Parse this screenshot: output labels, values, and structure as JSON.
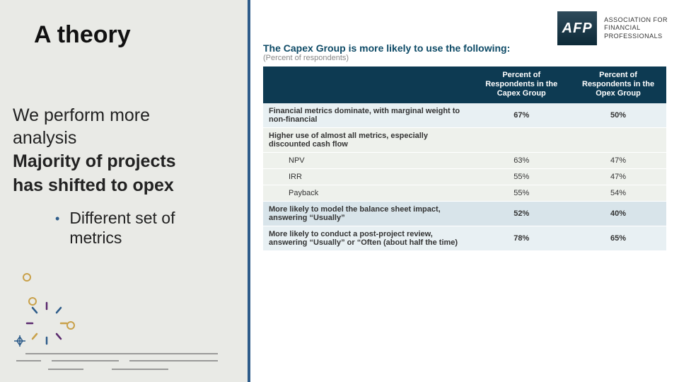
{
  "slide": {
    "title": "A theory",
    "body": {
      "line1": "We perform more",
      "line2": "analysis",
      "line3": "Majority of projects",
      "line4": "has shifted to opex",
      "bullet1a": "Different set of",
      "bullet1b": "metrics"
    }
  },
  "brand": {
    "logo_text": "AFP",
    "sub_line1": "Association for",
    "sub_line2": "Financial",
    "sub_line3": "Professionals"
  },
  "table": {
    "title": "The Capex Group is more likely to use the following:",
    "subtitle": "(Percent of respondents)",
    "columns": {
      "c0": "",
      "c1": "Percent of Respondents in the Capex Group",
      "c2": "Percent of Respondents in the Opex Group"
    },
    "rows": [
      {
        "band": "a",
        "head": true,
        "indent": false,
        "label": "Financial metrics dominate, with marginal weight to non-financial",
        "v1": "67%",
        "v2": "50%"
      },
      {
        "band": "b",
        "head": true,
        "indent": false,
        "label": "Higher use of almost all metrics, especially discounted cash flow",
        "v1": "",
        "v2": ""
      },
      {
        "band": "b",
        "head": false,
        "indent": true,
        "label": "NPV",
        "v1": "63%",
        "v2": "47%"
      },
      {
        "band": "b",
        "head": false,
        "indent": true,
        "label": "IRR",
        "v1": "55%",
        "v2": "47%"
      },
      {
        "band": "b",
        "head": false,
        "indent": true,
        "label": "Payback",
        "v1": "55%",
        "v2": "54%"
      },
      {
        "band": "c",
        "head": true,
        "indent": false,
        "label": "More likely to model the balance sheet impact, answering “Usually”",
        "v1": "52%",
        "v2": "40%"
      },
      {
        "band": "a",
        "head": true,
        "indent": false,
        "label": "More likely to conduct a post-project review, answering “Usually” or “Often (about half the time)",
        "v1": "78%",
        "v2": "65%"
      }
    ],
    "style": {
      "header_bg": "#0d3a52",
      "band_a_bg": "#e8f0f3",
      "band_b_bg": "#eef1ec",
      "band_c_bg": "#d8e4ea",
      "title_color": "#0d4a66",
      "font_size_pt": 11,
      "col_widths_pct": [
        52,
        24,
        24
      ]
    }
  },
  "decor": {
    "circle_stroke": "#c9a14a",
    "ray_colors": [
      "#5b2a6e",
      "#2e5c8a",
      "#c9a14a"
    ],
    "sparkle_color": "#2e5c8a",
    "line_color": "#6b6b6b"
  },
  "colors": {
    "left_pane_bg": "#e9eae6",
    "divider": "#2e5c8a",
    "text": "#222222"
  }
}
